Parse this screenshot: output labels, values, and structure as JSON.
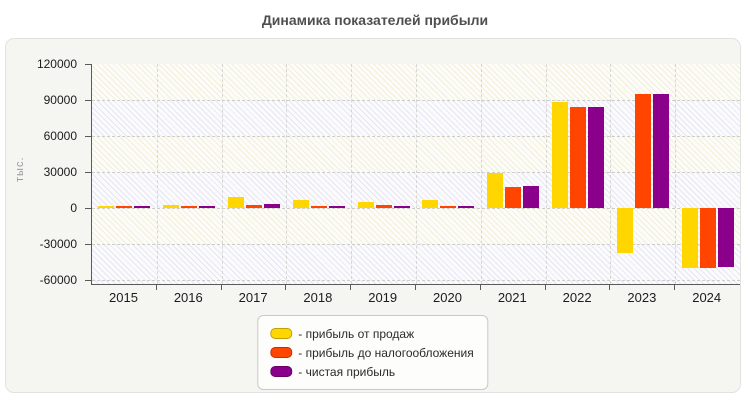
{
  "page": {
    "title": "Динамика показателей прибыли"
  },
  "chart_data": {
    "type": "bar",
    "title": "Динамика показателей прибыли",
    "xlabel": "",
    "ylabel": "тыс.",
    "ylim": [
      -60000,
      120000
    ],
    "ytick_step": 30000,
    "ytick_labels": [
      "-60000",
      "-30000",
      "0",
      "30000",
      "60000",
      "90000",
      "120000"
    ],
    "grid": true,
    "legend_position": "bottom",
    "categories": [
      "2015",
      "2016",
      "2017",
      "2018",
      "2019",
      "2020",
      "2021",
      "2022",
      "2023",
      "2024"
    ],
    "series": [
      {
        "name": "прибыль от продаж",
        "color": "#FFD600",
        "values": [
          2000,
          3000,
          9000,
          7000,
          5500,
          7000,
          29000,
          88000,
          -37500,
          -50000
        ]
      },
      {
        "name": "прибыль до налогообложения",
        "color": "#FF4500",
        "values": [
          1500,
          1500,
          2800,
          2000,
          2800,
          2200,
          18000,
          84000,
          95000,
          -50000
        ]
      },
      {
        "name": "чистая прибыль",
        "color": "#8B008B",
        "values": [
          1500,
          1800,
          3200,
          1500,
          1700,
          1700,
          18500,
          84000,
          95000,
          -49000
        ]
      }
    ]
  },
  "legend": {
    "items": [
      {
        "label": "- прибыль от продаж",
        "color": "#FFD600"
      },
      {
        "label": "- прибыль до налогообложения",
        "color": "#FF4500"
      },
      {
        "label": "- чистая прибыль",
        "color": "#8B008B"
      }
    ]
  }
}
